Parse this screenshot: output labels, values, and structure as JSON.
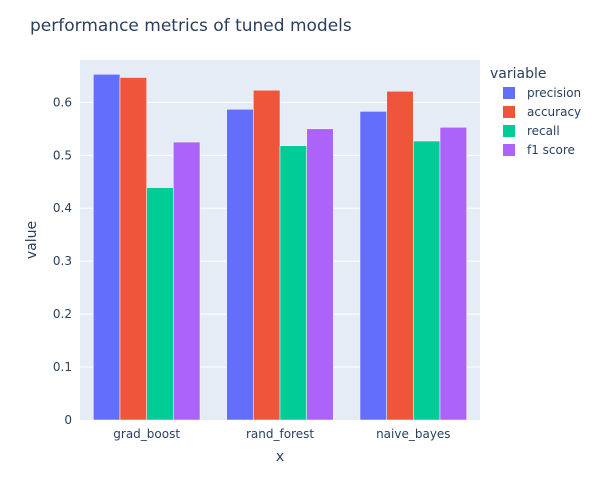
{
  "chart_data": {
    "type": "bar",
    "title": "performance metrics of tuned models",
    "xlabel": "x",
    "ylabel": "value",
    "categories": [
      "grad_boost",
      "rand_forest",
      "naive_bayes"
    ],
    "ylim": [
      0,
      0.68
    ],
    "yticks": [
      "0",
      "0.1",
      "0.2",
      "0.3",
      "0.4",
      "0.5",
      "0.6"
    ],
    "legend_title": "variable",
    "legend_position": "right",
    "grid": true,
    "series": [
      {
        "name": "precision",
        "color": "#636efa",
        "values": [
          0.653,
          0.587,
          0.583
        ]
      },
      {
        "name": "accuracy",
        "color": "#ef553b",
        "values": [
          0.647,
          0.623,
          0.621
        ]
      },
      {
        "name": "recall",
        "color": "#00cc96",
        "values": [
          0.439,
          0.518,
          0.527
        ]
      },
      {
        "name": "f1 score",
        "color": "#ab63fa",
        "values": [
          0.525,
          0.55,
          0.553
        ]
      }
    ]
  }
}
